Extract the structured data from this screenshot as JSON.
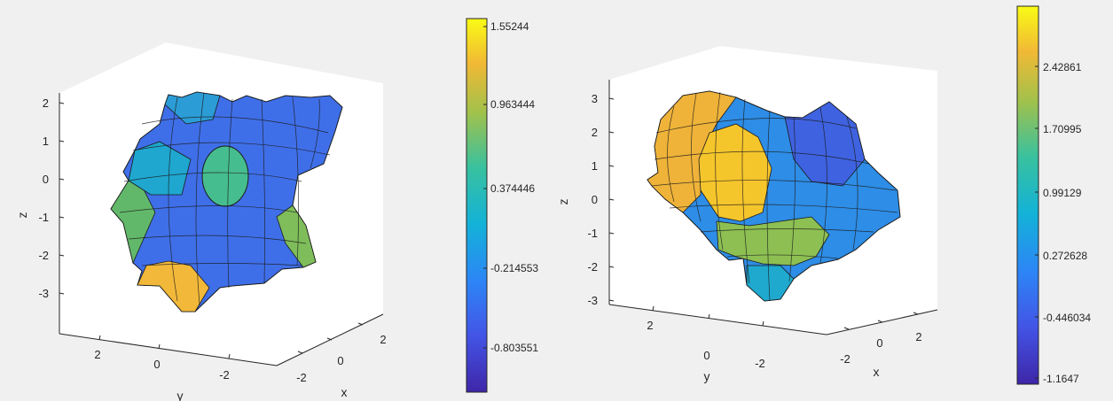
{
  "chart_data": [
    {
      "type": "surface3d",
      "xlabel": "x",
      "ylabel": "y",
      "zlabel": "z",
      "x_ticks": [
        "-2",
        "0",
        "2"
      ],
      "y_ticks": [
        "2",
        "0",
        "-2"
      ],
      "z_ticks": [
        "2",
        "1",
        "0",
        "-1",
        "-2",
        "-3"
      ],
      "colorbar": {
        "ticks": [
          "1.55244",
          "0.963444",
          "0.374446",
          "-0.214553",
          "-0.803551"
        ],
        "range": [
          -1.09,
          1.6
        ]
      },
      "colormap": "parula"
    },
    {
      "type": "surface3d",
      "xlabel": "x",
      "ylabel": "y",
      "zlabel": "z",
      "x_ticks": [
        "-2",
        "0",
        "2"
      ],
      "y_ticks": [
        "2",
        "0",
        "-2"
      ],
      "z_ticks": [
        "3",
        "2",
        "1",
        "0",
        "-1",
        "-2",
        "-3"
      ],
      "colorbar": {
        "ticks": [
          "2.42861",
          "1.70995",
          "0.99129",
          "0.272628",
          "-0.446034",
          "-1.1647"
        ],
        "range": [
          -1.52,
          2.78
        ]
      },
      "colormap": "parula"
    }
  ]
}
